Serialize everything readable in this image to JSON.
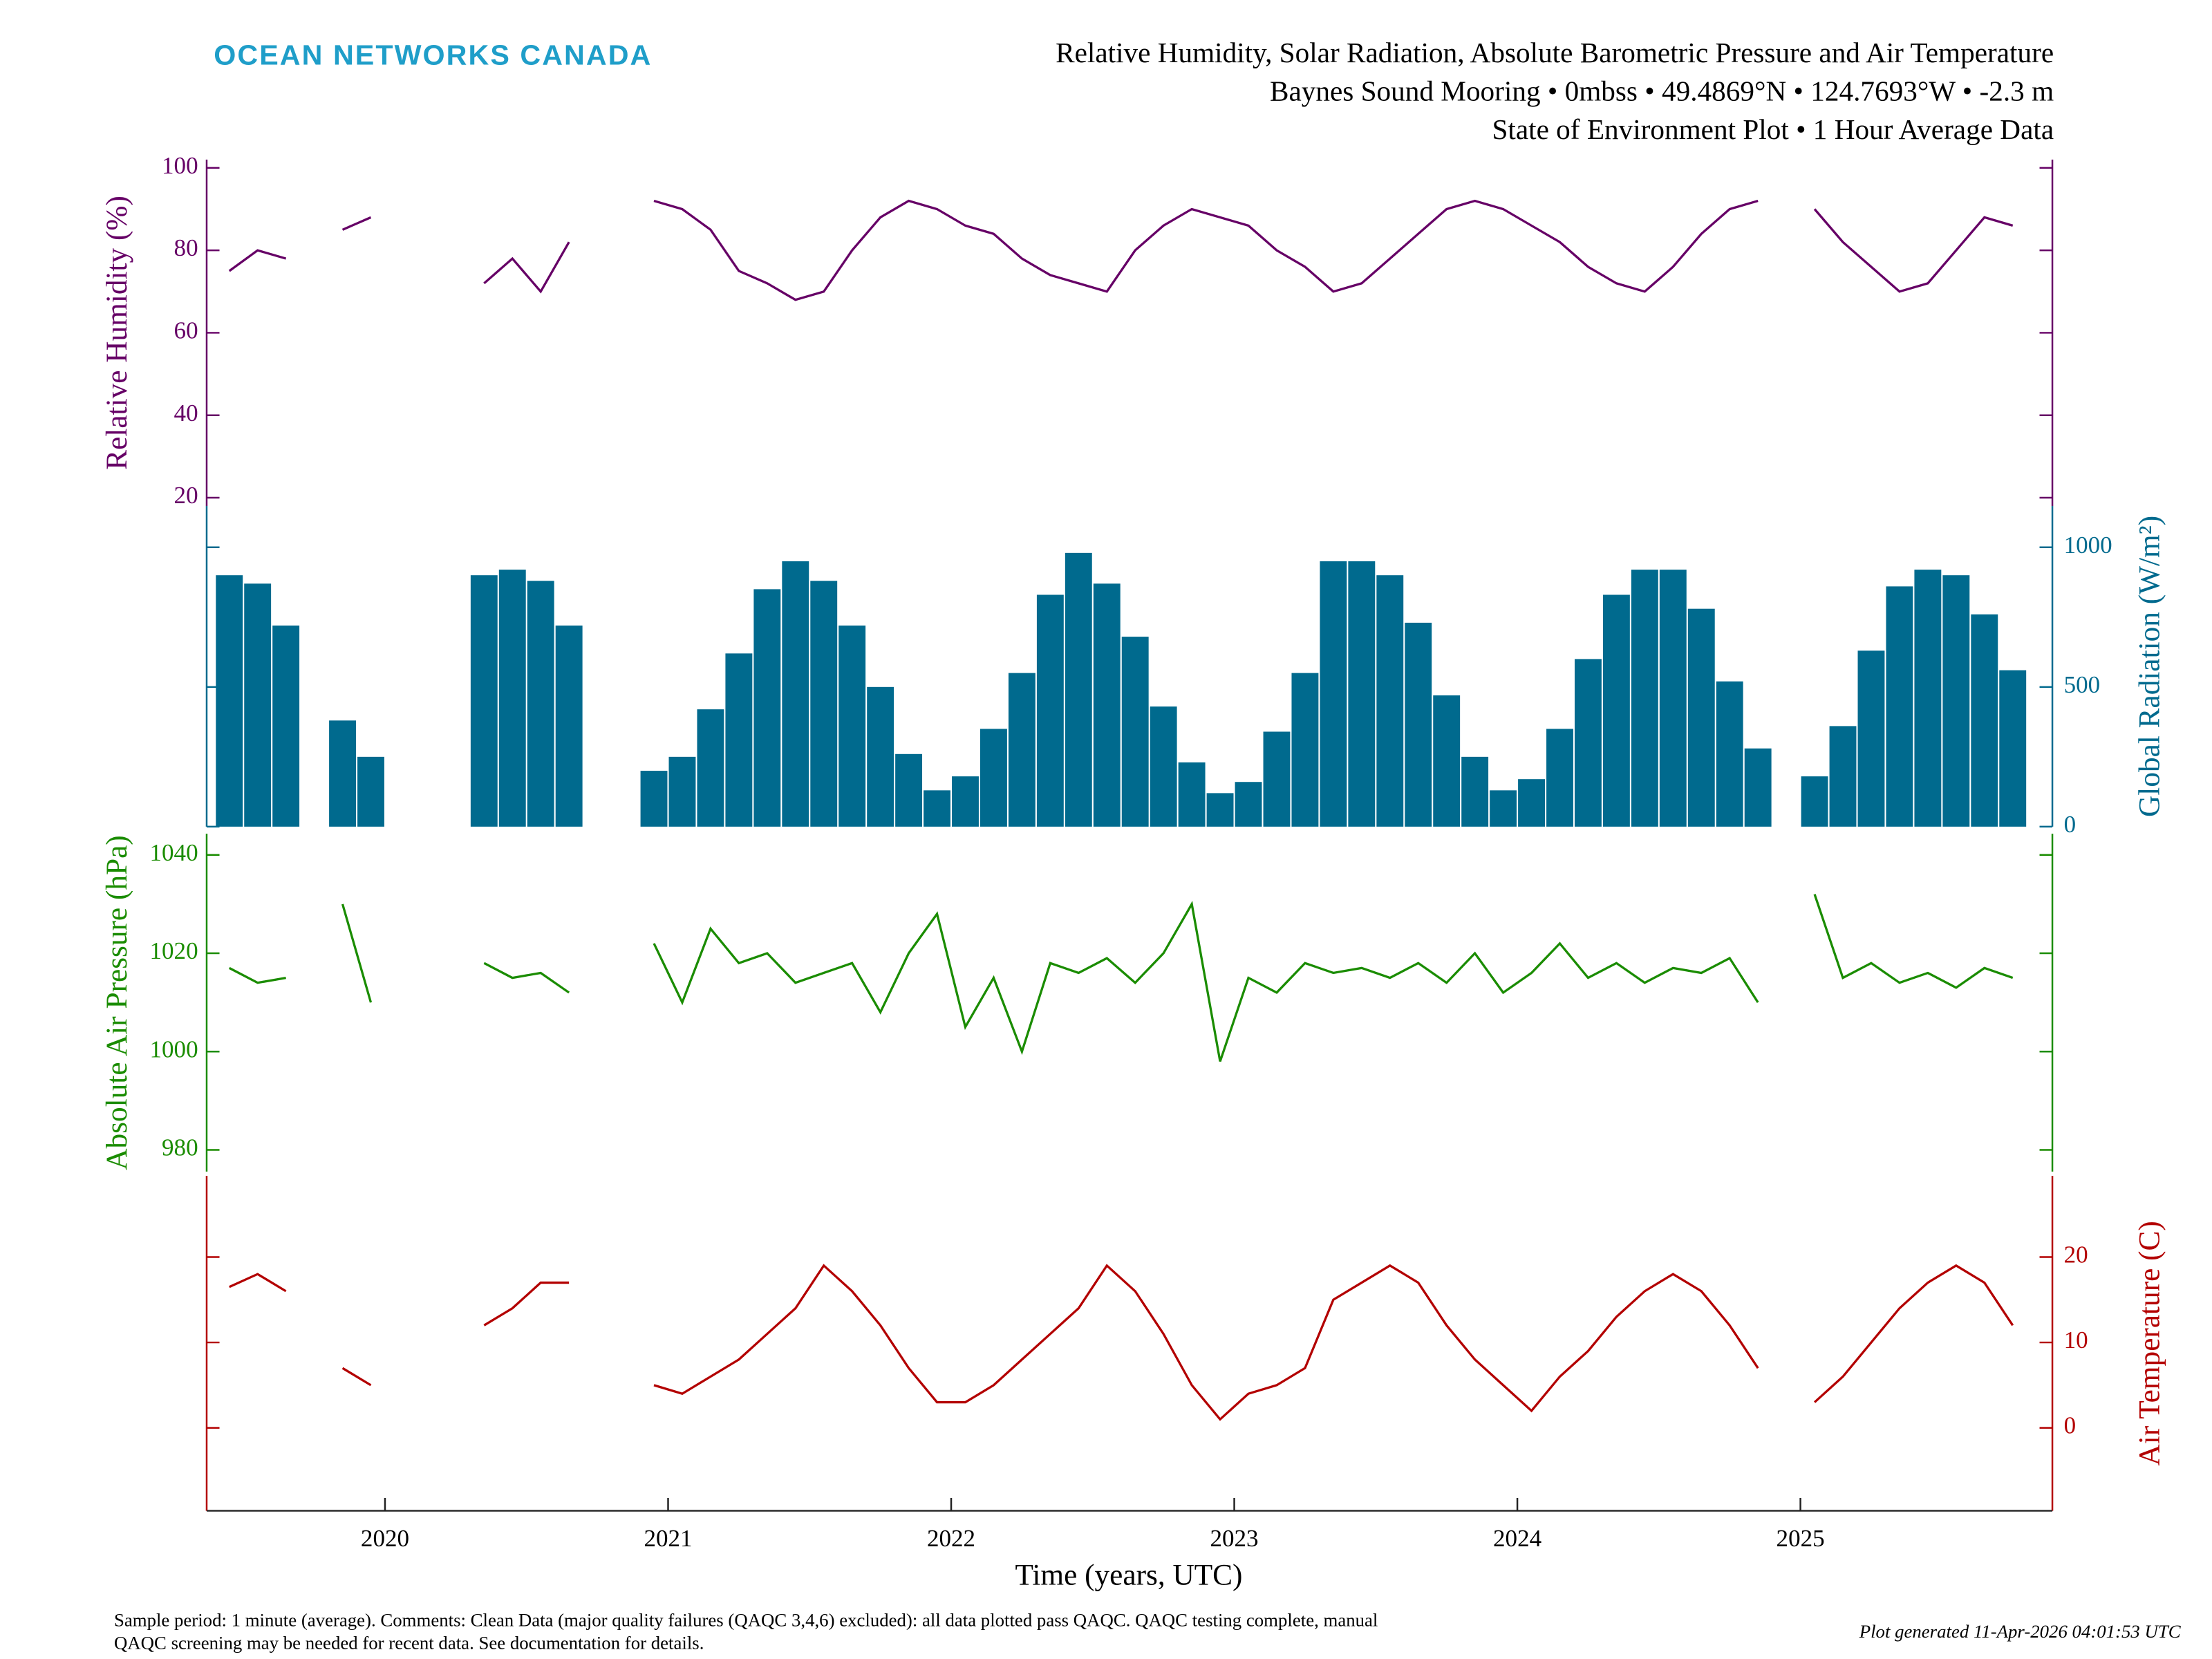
{
  "header": {
    "logo": "OCEAN NETWORKS CANADA",
    "title_lines": [
      "Relative Humidity, Solar Radiation, Absolute Barometric Pressure and Air Temperature",
      "Baynes Sound Mooring • 0mbss • 49.4869°N • 124.7693°W • -2.3 m",
      "State of Environment Plot • 1 Hour Average Data"
    ]
  },
  "chart_data": {
    "type": "panels",
    "xlabel": "Time (years, UTC)",
    "xlim": [
      2019.37,
      2025.89
    ],
    "xticks": [
      2020,
      2021,
      2022,
      2023,
      2024,
      2025
    ],
    "x": [
      2019.45,
      2019.55,
      2019.65,
      2019.75,
      2019.85,
      2019.95,
      2020.05,
      2020.15,
      2020.25,
      2020.35,
      2020.45,
      2020.55,
      2020.65,
      2020.75,
      2020.85,
      2020.95,
      2021.05,
      2021.15,
      2021.25,
      2021.35,
      2021.45,
      2021.55,
      2021.65,
      2021.75,
      2021.85,
      2021.95,
      2022.05,
      2022.15,
      2022.25,
      2022.35,
      2022.45,
      2022.55,
      2022.65,
      2022.75,
      2022.85,
      2022.95,
      2023.05,
      2023.15,
      2023.25,
      2023.35,
      2023.45,
      2023.55,
      2023.65,
      2023.75,
      2023.85,
      2023.95,
      2024.05,
      2024.15,
      2024.25,
      2024.35,
      2024.45,
      2024.55,
      2024.65,
      2024.75,
      2024.85,
      2024.95,
      2025.05,
      2025.15,
      2025.25,
      2025.35,
      2025.45,
      2025.55,
      2025.65,
      2025.75,
      2025.85
    ],
    "panels": [
      {
        "type": "line",
        "ylabel": "Relative Humidity (%)",
        "side": "left",
        "color": "#660066",
        "ylim": [
          18,
          102
        ],
        "yticks": [
          20,
          40,
          60,
          80,
          100
        ],
        "values": [
          75,
          80,
          78,
          null,
          85,
          88,
          null,
          null,
          null,
          72,
          78,
          70,
          82,
          null,
          null,
          92,
          90,
          85,
          75,
          72,
          68,
          70,
          80,
          88,
          92,
          90,
          86,
          84,
          78,
          74,
          72,
          70,
          80,
          86,
          90,
          88,
          86,
          80,
          76,
          70,
          72,
          78,
          84,
          90,
          92,
          90,
          86,
          82,
          76,
          72,
          70,
          76,
          84,
          90,
          92,
          null,
          90,
          82,
          76,
          70,
          72,
          80,
          88,
          86,
          null
        ]
      },
      {
        "type": "bar",
        "ylabel": "Global Radiation (W/m²)",
        "side": "right",
        "color": "#006a8e",
        "ylim": [
          0,
          1148
        ],
        "yticks": [
          0,
          500,
          1000
        ],
        "values": [
          900,
          870,
          720,
          null,
          380,
          250,
          null,
          null,
          null,
          900,
          920,
          880,
          720,
          null,
          null,
          200,
          250,
          420,
          620,
          850,
          950,
          880,
          720,
          500,
          260,
          130,
          180,
          350,
          550,
          830,
          980,
          870,
          680,
          430,
          230,
          120,
          160,
          340,
          550,
          950,
          950,
          900,
          730,
          470,
          250,
          130,
          170,
          350,
          600,
          830,
          920,
          920,
          780,
          520,
          280,
          null,
          180,
          360,
          630,
          860,
          920,
          900,
          760,
          560,
          null
        ]
      },
      {
        "type": "line",
        "ylabel": "Absolute Air Pressure (hPa)",
        "side": "left",
        "color": "#1a8c00",
        "ylim": [
          975.6,
          1044.3
        ],
        "yticks": [
          980,
          1000,
          1020,
          1040
        ],
        "values": [
          1017,
          1014,
          1015,
          null,
          1030,
          1010,
          null,
          null,
          null,
          1018,
          1015,
          1016,
          1012,
          null,
          null,
          1022,
          1010,
          1025,
          1018,
          1020,
          1014,
          1016,
          1018,
          1008,
          1020,
          1028,
          1005,
          1015,
          1000,
          1018,
          1016,
          1019,
          1014,
          1020,
          1030,
          998,
          1015,
          1012,
          1018,
          1016,
          1017,
          1015,
          1018,
          1014,
          1020,
          1012,
          1016,
          1022,
          1015,
          1018,
          1014,
          1017,
          1016,
          1019,
          1010,
          null,
          1032,
          1015,
          1018,
          1014,
          1016,
          1013,
          1017,
          1015,
          null
        ]
      },
      {
        "type": "line",
        "ylabel": "Air Temperature (C)",
        "side": "right",
        "color": "#b30000",
        "ylim": [
          -9.7,
          29.5
        ],
        "yticks": [
          0,
          10,
          20
        ],
        "values": [
          16.5,
          18,
          16,
          null,
          7,
          5,
          null,
          null,
          null,
          12,
          14,
          17,
          17,
          null,
          null,
          5,
          4,
          6,
          8,
          11,
          14,
          19,
          16,
          12,
          7,
          3,
          3,
          5,
          8,
          11,
          14,
          19,
          16,
          11,
          5,
          1,
          4,
          5,
          7,
          15,
          17,
          19,
          17,
          12,
          8,
          5,
          2,
          6,
          9,
          13,
          16,
          18,
          16,
          12,
          7,
          null,
          3,
          6,
          10,
          14,
          17,
          19,
          17,
          12,
          null
        ]
      }
    ]
  },
  "footer": {
    "note_lines": [
      "Sample period: 1 minute (average). Comments: Clean Data (major quality failures (QAQC 3,4,6) excluded): all data plotted pass QAQC. QAQC testing complete, manual",
      "QAQC screening may be needed for recent data. See documentation for details."
    ],
    "generated": "Plot generated 11-Apr-2026 04:01:53 UTC"
  }
}
